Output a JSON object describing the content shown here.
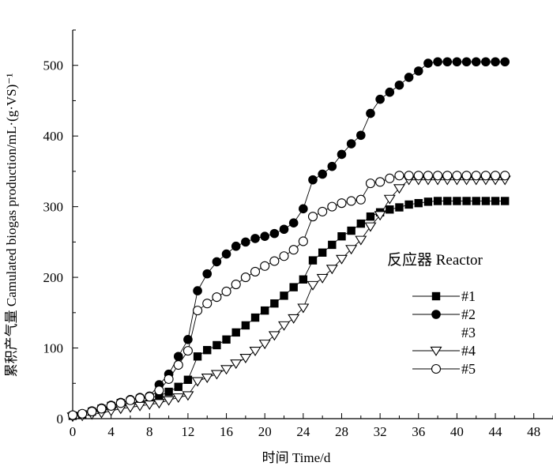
{
  "chart_data": {
    "type": "scatter",
    "xlabel": "时间 Time/d",
    "ylabel": "累积产气量 Camulated biogas production/mL·(g·VS)⁻¹",
    "xlim": [
      0,
      50
    ],
    "ylim": [
      0,
      550
    ],
    "xticks": [
      0,
      4,
      8,
      12,
      16,
      20,
      24,
      28,
      32,
      36,
      40,
      44,
      48
    ],
    "yticks": [
      0,
      100,
      200,
      300,
      400,
      500
    ],
    "grid": false,
    "legend": {
      "title": "反应器 Reactor",
      "position": "right",
      "labels": [
        "#1",
        "#2",
        "#3",
        "#4",
        "#5"
      ]
    },
    "x": [
      0,
      1,
      2,
      3,
      4,
      5,
      6,
      7,
      8,
      9,
      10,
      11,
      12,
      13,
      14,
      15,
      16,
      17,
      18,
      19,
      20,
      21,
      22,
      23,
      24,
      25,
      26,
      27,
      28,
      29,
      30,
      31,
      32,
      33,
      34,
      35,
      36,
      37,
      38,
      39,
      40,
      41,
      42,
      43,
      44,
      45
    ],
    "series": [
      {
        "name": "#1",
        "marker": "square-filled",
        "values": [
          4,
          6,
          10,
          14,
          18,
          22,
          25,
          28,
          30,
          32,
          38,
          45,
          55,
          88,
          97,
          104,
          112,
          122,
          132,
          143,
          153,
          163,
          174,
          186,
          197,
          224,
          235,
          246,
          258,
          266,
          276,
          286,
          292,
          296,
          299,
          303,
          305,
          307,
          308,
          308,
          308,
          308,
          308,
          308,
          308,
          308
        ]
      },
      {
        "name": "#2",
        "marker": "circle-filled",
        "values": [
          5,
          7,
          11,
          15,
          19,
          23,
          27,
          30,
          32,
          48,
          63,
          88,
          112,
          181,
          205,
          222,
          233,
          244,
          250,
          255,
          258,
          262,
          268,
          277,
          297,
          338,
          346,
          357,
          374,
          389,
          401,
          432,
          452,
          462,
          472,
          483,
          492,
          503,
          505,
          505,
          505,
          505,
          505,
          505,
          505,
          505
        ]
      },
      {
        "name": "#3",
        "marker": "none",
        "values": []
      },
      {
        "name": "#4",
        "marker": "triangle-down-open",
        "values": [
          3,
          4,
          6,
          8,
          11,
          14,
          16,
          18,
          20,
          22,
          26,
          30,
          33,
          53,
          58,
          63,
          70,
          78,
          86,
          96,
          106,
          118,
          132,
          142,
          157,
          189,
          199,
          212,
          226,
          240,
          253,
          272,
          288,
          311,
          326,
          338,
          338,
          338,
          338,
          338,
          338,
          338,
          338,
          338,
          338,
          338
        ]
      },
      {
        "name": "#5",
        "marker": "circle-open",
        "values": [
          5,
          7,
          10,
          14,
          18,
          22,
          26,
          29,
          31,
          40,
          56,
          76,
          96,
          153,
          163,
          172,
          180,
          190,
          200,
          208,
          216,
          223,
          230,
          239,
          251,
          286,
          293,
          300,
          305,
          308,
          310,
          333,
          335,
          340,
          344,
          344,
          344,
          344,
          344,
          344,
          344,
          344,
          344,
          344,
          344,
          344
        ]
      }
    ]
  }
}
